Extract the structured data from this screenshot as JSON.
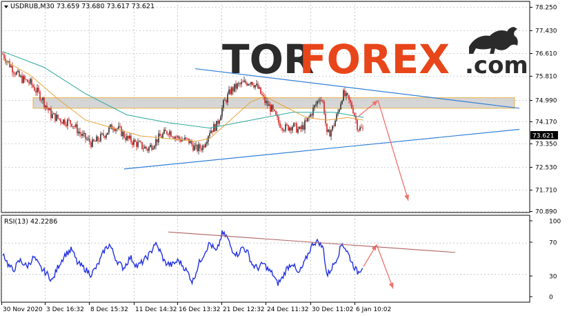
{
  "header": {
    "symbol_tf": "USDRUB,M30",
    "ohlc": "73.659 73.680 73.617 73.621",
    "rsi_label": "RSI(13) 42.2286"
  },
  "logo": {
    "part1": "TOR",
    "part2": "FOREX",
    "part3": ".com",
    "icon": "bull-icon"
  },
  "colors": {
    "candle_up": "#2b2b2b",
    "candle_down": "#d42020",
    "ma_fast": "#e8a23a",
    "ma_slow": "#2aa89a",
    "trendline": "#2f7fd6",
    "zone_fill": "#c8c8c8",
    "zone_border": "#e8b24a",
    "arrow": "#f0706a",
    "rsi_line": "#1f2fe0",
    "rsi_trend": "#b06060",
    "grid": "#9aa3ad",
    "price_tag_bg": "#000000"
  },
  "chart_data": [
    {
      "type": "candlestick",
      "ylim": [
        70.5,
        78.5
      ],
      "y_ticks": [
        "78.250",
        "77.430",
        "76.610",
        "75.810",
        "74.990",
        "74.170",
        "73.350",
        "72.530",
        "71.710",
        "70.890"
      ],
      "x_ticks": [
        "30 Nov 2020",
        "3 Dec 16:32",
        "8 Dec 15:32",
        "11 Dec 14:32",
        "16 Dec 13:32",
        "21 Dec 12:32",
        "24 Dec 11:32",
        "30 Dec 11:02",
        "6 Jan 10:02"
      ],
      "last_price": "73.621",
      "price_path": [
        [
          0,
          76.5
        ],
        [
          10,
          76.1
        ],
        [
          25,
          75.6
        ],
        [
          40,
          75.4
        ],
        [
          55,
          74.9
        ],
        [
          70,
          74.2
        ],
        [
          85,
          74.0
        ],
        [
          100,
          73.9
        ],
        [
          115,
          73.4
        ],
        [
          130,
          73.1
        ],
        [
          145,
          73.4
        ],
        [
          160,
          73.8
        ],
        [
          170,
          73.6
        ],
        [
          180,
          73.3
        ],
        [
          195,
          73.1
        ],
        [
          210,
          72.9
        ],
        [
          225,
          73.3
        ],
        [
          240,
          73.6
        ],
        [
          255,
          73.3
        ],
        [
          270,
          73.2
        ],
        [
          280,
          72.9
        ],
        [
          290,
          73.0
        ],
        [
          300,
          73.6
        ],
        [
          310,
          73.8
        ],
        [
          320,
          74.6
        ],
        [
          330,
          75.1
        ],
        [
          340,
          75.3
        ],
        [
          350,
          75.4
        ],
        [
          360,
          75.5
        ],
        [
          370,
          75.2
        ],
        [
          380,
          74.7
        ],
        [
          390,
          74.4
        ],
        [
          400,
          73.9
        ],
        [
          410,
          73.7
        ],
        [
          420,
          73.8
        ],
        [
          430,
          73.6
        ],
        [
          440,
          73.9
        ],
        [
          450,
          74.4
        ],
        [
          460,
          74.9
        ],
        [
          465,
          74.6
        ],
        [
          470,
          73.4
        ],
        [
          478,
          73.7
        ],
        [
          485,
          74.2
        ],
        [
          493,
          75.0
        ],
        [
          500,
          74.8
        ],
        [
          508,
          74.4
        ],
        [
          515,
          73.7
        ],
        [
          523,
          73.62
        ]
      ],
      "ma_fast": [
        [
          0,
          76.3
        ],
        [
          40,
          75.7
        ],
        [
          80,
          74.8
        ],
        [
          120,
          74.0
        ],
        [
          160,
          73.7
        ],
        [
          200,
          73.4
        ],
        [
          240,
          73.3
        ],
        [
          280,
          73.2
        ],
        [
          300,
          73.3
        ],
        [
          330,
          74.0
        ],
        [
          360,
          74.7
        ],
        [
          380,
          74.9
        ],
        [
          410,
          74.5
        ],
        [
          440,
          74.1
        ],
        [
          470,
          74.0
        ],
        [
          500,
          74.1
        ],
        [
          523,
          74.0
        ]
      ],
      "ma_slow": [
        [
          0,
          76.6
        ],
        [
          60,
          76.0
        ],
        [
          120,
          75.0
        ],
        [
          180,
          74.2
        ],
        [
          240,
          73.9
        ],
        [
          300,
          73.7
        ],
        [
          360,
          74.0
        ],
        [
          420,
          74.3
        ],
        [
          480,
          74.3
        ],
        [
          523,
          74.1
        ]
      ],
      "trendlines": [
        {
          "from": [
            283,
            75.95
          ],
          "to": [
            753,
            74.45
          ]
        },
        {
          "from": [
            180,
            72.15
          ],
          "to": [
            753,
            73.65
          ]
        }
      ],
      "resistance_zone": {
        "x_from": 44,
        "x_to": 742,
        "y_from": 74.45,
        "y_to": 74.85
      },
      "forecast_arrows": [
        {
          "from": [
            520,
            74.15
          ],
          "to": [
            548,
            74.75
          ]
        },
        {
          "from": [
            548,
            74.75
          ],
          "to": [
            592,
            70.95
          ]
        }
      ]
    },
    {
      "type": "line",
      "name": "RSI(13)",
      "ylim": [
        0,
        100
      ],
      "y_ticks": [
        "100",
        "70",
        "30",
        "0"
      ],
      "levels": [
        70,
        30
      ],
      "path": [
        [
          0,
          58
        ],
        [
          8,
          42
        ],
        [
          15,
          35
        ],
        [
          25,
          48
        ],
        [
          35,
          40
        ],
        [
          45,
          52
        ],
        [
          55,
          38
        ],
        [
          65,
          30
        ],
        [
          72,
          22
        ],
        [
          80,
          40
        ],
        [
          90,
          55
        ],
        [
          100,
          62
        ],
        [
          108,
          45
        ],
        [
          118,
          38
        ],
        [
          128,
          30
        ],
        [
          138,
          42
        ],
        [
          148,
          62
        ],
        [
          155,
          68
        ],
        [
          165,
          48
        ],
        [
          175,
          38
        ],
        [
          185,
          52
        ],
        [
          195,
          40
        ],
        [
          205,
          48
        ],
        [
          215,
          58
        ],
        [
          220,
          70
        ],
        [
          228,
          60
        ],
        [
          235,
          45
        ],
        [
          245,
          42
        ],
        [
          255,
          48
        ],
        [
          262,
          40
        ],
        [
          270,
          30
        ],
        [
          275,
          20
        ],
        [
          285,
          45
        ],
        [
          295,
          62
        ],
        [
          300,
          70
        ],
        [
          310,
          58
        ],
        [
          318,
          82
        ],
        [
          325,
          78
        ],
        [
          332,
          62
        ],
        [
          340,
          55
        ],
        [
          348,
          65
        ],
        [
          355,
          58
        ],
        [
          362,
          42
        ],
        [
          370,
          38
        ],
        [
          378,
          44
        ],
        [
          385,
          36
        ],
        [
          392,
          30
        ],
        [
          398,
          18
        ],
        [
          405,
          25
        ],
        [
          412,
          38
        ],
        [
          420,
          45
        ],
        [
          428,
          30
        ],
        [
          435,
          40
        ],
        [
          442,
          55
        ],
        [
          450,
          70
        ],
        [
          458,
          72
        ],
        [
          465,
          62
        ],
        [
          470,
          28
        ],
        [
          478,
          40
        ],
        [
          485,
          52
        ],
        [
          492,
          70
        ],
        [
          500,
          58
        ],
        [
          508,
          42
        ],
        [
          515,
          32
        ],
        [
          523,
          42
        ]
      ],
      "trendline": {
        "from": [
          244,
          84
        ],
        "to": [
          660,
          58
        ]
      },
      "forecast_arrows": [
        {
          "from": [
            527,
            40
          ],
          "to": [
            546,
            68
          ]
        },
        {
          "from": [
            546,
            68
          ],
          "to": [
            570,
            12
          ]
        }
      ]
    }
  ]
}
